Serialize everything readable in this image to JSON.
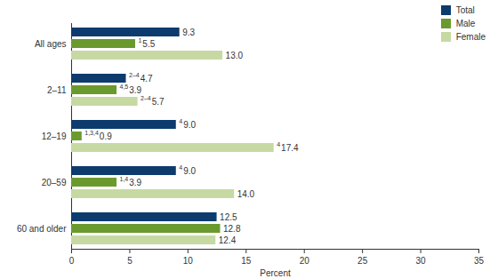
{
  "chart_data": {
    "type": "bar",
    "orientation": "horizontal",
    "xlabel": "Percent",
    "categories": [
      "All ages",
      "2–11",
      "12–19",
      "20–59",
      "60 and older"
    ],
    "series": [
      {
        "name": "Total",
        "color": "#0d3b6e",
        "values": [
          9.3,
          4.7,
          9.0,
          9.0,
          12.5
        ],
        "value_labels": [
          "9.3",
          "4.7",
          "9.0",
          "9.0",
          "12.5"
        ],
        "footnotes": [
          null,
          "2–4",
          "4",
          "4",
          null
        ]
      },
      {
        "name": "Male",
        "color": "#6a9a2e",
        "values": [
          5.5,
          3.9,
          0.9,
          3.9,
          12.8
        ],
        "value_labels": [
          "5.5",
          "3.9",
          "0.9",
          "3.9",
          "12.8"
        ],
        "footnotes": [
          "1",
          "4,5",
          "1,3,4",
          "1,4",
          null
        ]
      },
      {
        "name": "Female",
        "color": "#c6d9a3",
        "values": [
          13.0,
          5.7,
          17.4,
          14.0,
          12.4
        ],
        "value_labels": [
          "13.0",
          "5.7",
          "17.4",
          "14.0",
          "12.4"
        ],
        "footnotes": [
          null,
          "2–4",
          "4",
          null,
          null
        ]
      }
    ],
    "xlim": [
      0,
      35
    ],
    "xticks": [
      0,
      5,
      10,
      15,
      20,
      25,
      30,
      35
    ],
    "data_labels": true,
    "grid": false,
    "legend": "top-right"
  }
}
